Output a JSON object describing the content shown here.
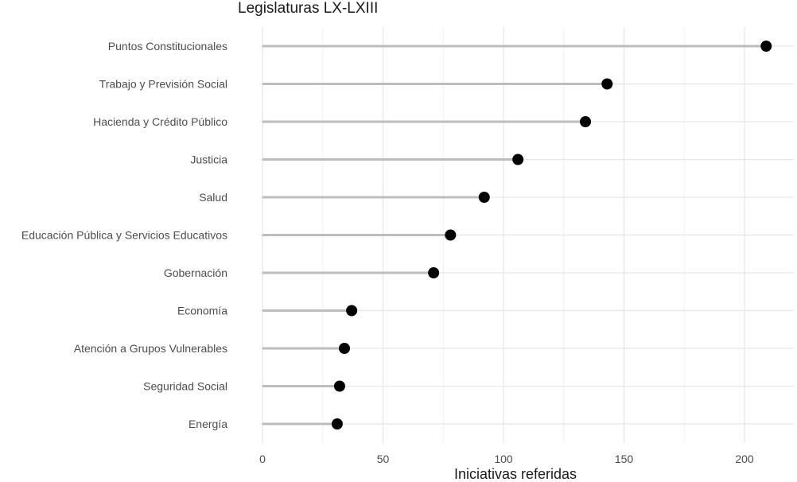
{
  "chart_data": {
    "type": "lollipop",
    "title": "Legislaturas LX-LXIII",
    "xlabel": "Iniciativas referidas",
    "ylabel": "",
    "xlim": [
      0,
      220
    ],
    "x_ticks": [
      0,
      50,
      100,
      150,
      200
    ],
    "x_tick_labels": [
      "0",
      "50",
      "100",
      "150",
      "200"
    ],
    "categories": [
      "Puntos Constitucionales",
      "Trabajo y Previsión Social",
      "Hacienda y Crédito Público",
      "Justicia",
      "Salud",
      "Educación Pública y Servicios Educativos",
      "Gobernación",
      "Economía",
      "Atención a Grupos Vulnerables",
      "Seguridad Social",
      "Energía"
    ],
    "values": [
      209,
      143,
      134,
      106,
      92,
      78,
      71,
      37,
      34,
      32,
      31
    ],
    "grid": true,
    "colors": {
      "stem": "#bdbdbd",
      "dot": "#000000",
      "grid_major": "#e6e6e6",
      "grid_minor": "#f2f2f2"
    }
  }
}
